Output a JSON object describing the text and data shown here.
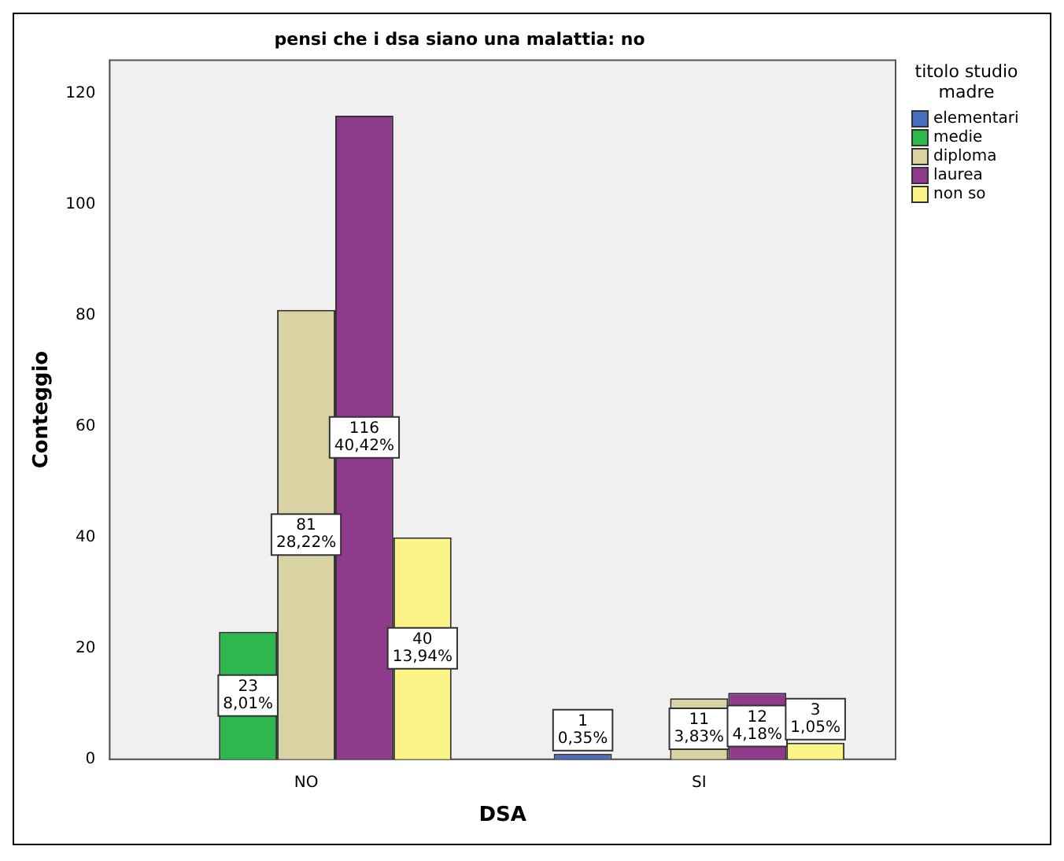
{
  "chart_data": {
    "type": "bar",
    "title": "pensi che i dsa siano una malattia: no",
    "xlabel": "DSA",
    "ylabel": "Conteggio",
    "legend_title": "titolo studio madre",
    "categories": [
      "NO",
      "SI"
    ],
    "series": [
      {
        "name": "elementari",
        "color": "#4a6fc0",
        "values": [
          null,
          1
        ],
        "value_labels": [
          null,
          "1\n0,35%"
        ]
      },
      {
        "name": "medie",
        "color": "#2db84d",
        "values": [
          23,
          null
        ],
        "value_labels": [
          "23\n8,01%",
          null
        ]
      },
      {
        "name": "diploma",
        "color": "#d9d3a3",
        "values": [
          81,
          11
        ],
        "value_labels": [
          "81\n28,22%",
          "11\n3,83%"
        ]
      },
      {
        "name": "laurea",
        "color": "#8e3b8c",
        "values": [
          116,
          12
        ],
        "value_labels": [
          "116\n40,42%",
          "12\n4,18%"
        ]
      },
      {
        "name": "non so",
        "color": "#fbf587",
        "values": [
          40,
          3
        ],
        "value_labels": [
          "40\n13,94%",
          "3\n1,05%"
        ]
      }
    ],
    "ylim": [
      0,
      126
    ],
    "yticks": [
      0,
      20,
      40,
      60,
      80,
      100,
      120
    ],
    "grid": false,
    "legend": "right"
  }
}
